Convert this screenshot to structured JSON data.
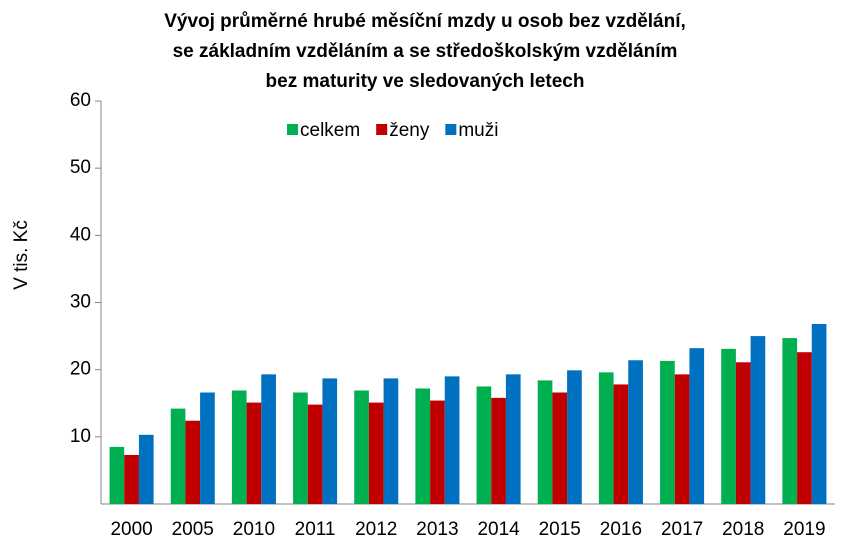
{
  "chart_data": {
    "type": "bar",
    "title": [
      "Vývoj průměrné hrubé měsíční mzdy u osob bez vzdělání,",
      "se základním vzděláním a se středoškolským  vzděláním",
      "bez maturity ve sledovaných letech"
    ],
    "y_label": "V tis. Kč",
    "categories": [
      "2000",
      "2005",
      "2010",
      "2011",
      "2012",
      "2013",
      "2014",
      "2015",
      "2016",
      "2017",
      "2018",
      "2019"
    ],
    "series": [
      {
        "name": "celkem",
        "color": "#00b050",
        "values": [
          8.5,
          14.2,
          16.9,
          16.6,
          16.9,
          17.2,
          17.5,
          18.4,
          19.6,
          21.3,
          23.1,
          24.7
        ]
      },
      {
        "name": "ženy",
        "color": "#c00000",
        "values": [
          7.3,
          12.4,
          15.1,
          14.8,
          15.1,
          15.4,
          15.8,
          16.6,
          17.8,
          19.3,
          21.1,
          22.6
        ]
      },
      {
        "name": "muži",
        "color": "#0070c0",
        "values": [
          10.3,
          16.6,
          19.3,
          18.7,
          18.7,
          19.0,
          19.3,
          19.9,
          21.4,
          23.2,
          25.0,
          26.8
        ]
      }
    ],
    "ylim": [
      0,
      60
    ],
    "yticks": [
      10,
      20,
      30,
      40,
      50,
      60
    ],
    "grid": false,
    "legend": "top"
  }
}
